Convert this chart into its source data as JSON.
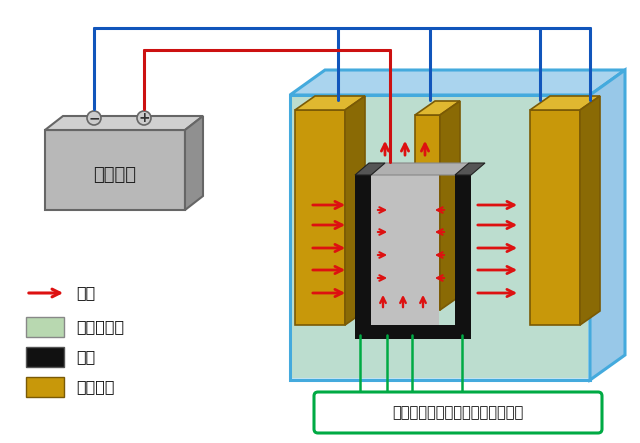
{
  "bg_color": "#ffffff",
  "wire_blue": "#1155bb",
  "wire_red": "#cc1111",
  "tank_front": "#c2e4f5",
  "tank_edge": "#44aadd",
  "tank_top": "#aad4ee",
  "tank_right": "#98c8e8",
  "cathode_front": "#c8980a",
  "cathode_top": "#e0b830",
  "cathode_right": "#8a6a05",
  "electrolyte": "#b8d8b0",
  "product_color": "#111111",
  "product_inner": "#aaaaaa",
  "arrow_color": "#dd1111",
  "green_line": "#00aa44",
  "battery_front": "#b8b8b8",
  "battery_top": "#d0d0d0",
  "battery_right": "#909090",
  "battery_label": "直流電源",
  "legend_labels": [
    "電流",
    "電解研磨液",
    "製品",
    "カソード"
  ],
  "legend_denkai": "#b8d8b0",
  "legend_seihin": "#111111",
  "legend_cathode": "#c8980a",
  "annotation": "電解研磨されやすい面（内外面）",
  "ann_color": "#00aa44"
}
